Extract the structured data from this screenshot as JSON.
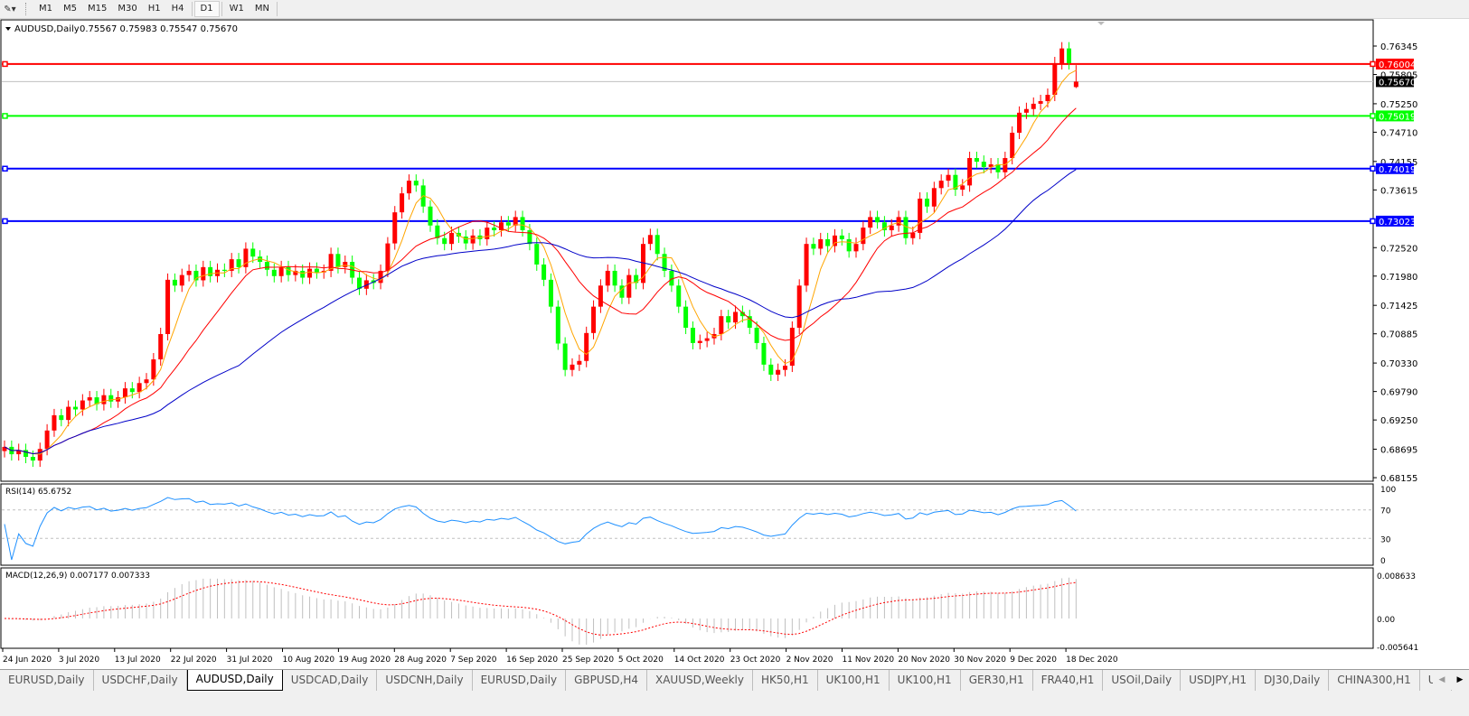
{
  "toolbar": {
    "timeframes": [
      "M1",
      "M5",
      "M15",
      "M30",
      "H1",
      "H4",
      "D1",
      "W1",
      "MN"
    ],
    "active_timeframe": "D1"
  },
  "chart_header": {
    "symbol": "AUDUSD,Daily",
    "ohlc": "0.75567 0.75983 0.75547 0.75670"
  },
  "colors": {
    "bull_candle": "#ff0000",
    "bear_candle": "#00ff00",
    "ma_fast": "#ffa500",
    "ma_mid": "#ff0000",
    "ma_slow": "#0000c8",
    "rsi_line": "#1e90ff",
    "macd_signal": "#ff0000",
    "macd_hist": "#c0c0c0"
  },
  "chart_data": [
    {
      "type": "candlestick",
      "title": "AUDUSD,Daily",
      "y_ticks": [
        "0.76345",
        "0.75805",
        "0.75250",
        "0.74710",
        "0.74155",
        "0.73615",
        "0.72520",
        "0.71980",
        "0.71425",
        "0.70885",
        "0.70330",
        "0.69790",
        "0.69250",
        "0.68695",
        "0.68155"
      ],
      "ylim": [
        0.68155,
        0.76345
      ],
      "x_ticks": [
        "24 Jun 2020",
        "3 Jul 2020",
        "13 Jul 2020",
        "22 Jul 2020",
        "31 Jul 2020",
        "10 Aug 2020",
        "19 Aug 2020",
        "28 Aug 2020",
        "7 Sep 2020",
        "16 Sep 2020",
        "25 Sep 2020",
        "5 Oct 2020",
        "14 Oct 2020",
        "23 Oct 2020",
        "2 Nov 2020",
        "11 Nov 2020",
        "20 Nov 2020",
        "30 Nov 2020",
        "9 Dec 2020",
        "18 Dec 2020"
      ],
      "close": [
        0.6874,
        0.686,
        0.6868,
        0.6855,
        0.6848,
        0.687,
        0.6905,
        0.6934,
        0.6925,
        0.695,
        0.6945,
        0.6962,
        0.6968,
        0.6955,
        0.6972,
        0.696,
        0.6968,
        0.6985,
        0.6978,
        0.6995,
        0.7002,
        0.704,
        0.7088,
        0.7191,
        0.718,
        0.72,
        0.7208,
        0.719,
        0.7215,
        0.7198,
        0.721,
        0.7208,
        0.723,
        0.7215,
        0.725,
        0.7235,
        0.7225,
        0.721,
        0.7198,
        0.7215,
        0.72,
        0.7208,
        0.7195,
        0.7212,
        0.7205,
        0.7208,
        0.724,
        0.7215,
        0.7225,
        0.7195,
        0.7174,
        0.719,
        0.7185,
        0.7208,
        0.726,
        0.7319,
        0.7355,
        0.7379,
        0.737,
        0.733,
        0.7294,
        0.727,
        0.7259,
        0.728,
        0.7273,
        0.726,
        0.7275,
        0.7268,
        0.729,
        0.7285,
        0.73,
        0.7294,
        0.731,
        0.7285,
        0.7259,
        0.722,
        0.7191,
        0.714,
        0.707,
        0.702,
        0.703,
        0.7037,
        0.709,
        0.714,
        0.718,
        0.7208,
        0.718,
        0.7157,
        0.72,
        0.7185,
        0.7259,
        0.7276,
        0.724,
        0.7208,
        0.718,
        0.714,
        0.71,
        0.7071,
        0.7075,
        0.708,
        0.7088,
        0.7122,
        0.711,
        0.713,
        0.7122,
        0.71,
        0.7071,
        0.703,
        0.7011,
        0.702,
        0.7028,
        0.71,
        0.718,
        0.7259,
        0.725,
        0.7268,
        0.7255,
        0.7275,
        0.7268,
        0.7245,
        0.7259,
        0.729,
        0.731,
        0.73,
        0.7285,
        0.7294,
        0.731,
        0.727,
        0.728,
        0.7345,
        0.733,
        0.7365,
        0.7379,
        0.739,
        0.7362,
        0.737,
        0.7422,
        0.7415,
        0.7405,
        0.741,
        0.7395,
        0.7422,
        0.747,
        0.7508,
        0.7515,
        0.7525,
        0.753,
        0.7542,
        0.7602,
        0.763,
        0.7602,
        0.7567
      ],
      "last_bar": {
        "open": 0.75567,
        "high": 0.75983,
        "low": 0.75547,
        "close": 0.7567
      },
      "current_price": "0.75670",
      "horizontal_lines": [
        {
          "price": "0.76004",
          "color": "#ff0000"
        },
        {
          "price": "0.75019",
          "color": "#00ff00"
        },
        {
          "price": "0.74019",
          "color": "#0000ff"
        },
        {
          "price": "0.73023",
          "color": "#0000ff"
        }
      ],
      "grid": false
    },
    {
      "type": "line",
      "title": "RSI(14) 65.6752",
      "y_ticks": [
        "100",
        "70",
        "30",
        "0"
      ],
      "ylim": [
        0,
        100
      ],
      "levels": [
        70,
        30
      ]
    },
    {
      "type": "bar",
      "title": "MACD(12,26,9) 0.007177 0.007333",
      "y_ticks": [
        "0.008633",
        "0.00",
        "-0.005641"
      ],
      "ylim": [
        -0.005641,
        0.008633
      ]
    }
  ],
  "tabs": [
    "EURUSD,Daily",
    "USDCHF,Daily",
    "AUDUSD,Daily",
    "USDCAD,Daily",
    "USDCNH,Daily",
    "EURUSD,Daily",
    "GBPUSD,H4",
    "XAUUSD,Weekly",
    "HK50,H1",
    "UK100,H1",
    "UK100,H1",
    "GER30,H1",
    "FRA40,H1",
    "USOil,Daily",
    "USDJPY,H1",
    "DJ30,Daily",
    "CHINA300,H1",
    "US"
  ],
  "active_tab": "AUDUSD,Daily"
}
